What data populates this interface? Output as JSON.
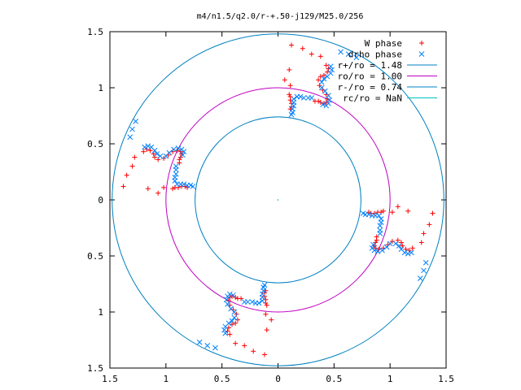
{
  "chart_data": {
    "type": "scatter",
    "title": "m4/n1.5/q2.0/r-+.50-j129/M25.0/256",
    "xlabel": "",
    "ylabel": "",
    "xlim": [
      -1.5,
      1.5
    ],
    "ylim": [
      -1.5,
      1.5
    ],
    "x_ticks": [
      -1.5,
      -1,
      -0.5,
      0,
      0.5,
      1,
      1.5
    ],
    "y_ticks": [
      -1.5,
      -1,
      -0.5,
      0,
      0.5,
      1,
      1.5
    ],
    "x_tick_labels": [
      "1.5",
      "1",
      "0.5",
      "0",
      "0.5",
      "1",
      "1.5"
    ],
    "y_tick_labels": [
      "1.5",
      "1",
      "0.5",
      "0",
      "0.5",
      "1",
      "1.5"
    ],
    "grid": false,
    "legend_position": "top-right",
    "symmetry": 4,
    "points_note": "",
    "series": [
      {
        "name": "W phase",
        "marker": "plus",
        "color": "#ff0000",
        "fundamental_points": [
          [
            0.43,
            1.2
          ],
          [
            0.45,
            1.17
          ],
          [
            0.44,
            1.14
          ],
          [
            0.41,
            1.11
          ],
          [
            0.38,
            1.1
          ],
          [
            0.36,
            1.07
          ],
          [
            0.37,
            1.02
          ],
          [
            0.4,
            0.98
          ],
          [
            0.43,
            0.94
          ],
          [
            0.44,
            0.9
          ],
          [
            0.43,
            0.87
          ],
          [
            0.41,
            0.86
          ],
          [
            0.38,
            0.87
          ],
          [
            0.36,
            0.88
          ],
          [
            0.33,
            0.88
          ],
          [
            0.1,
            0.94
          ],
          [
            0.11,
            0.92
          ],
          [
            0.11,
            0.89
          ],
          [
            0.12,
            0.86
          ],
          [
            0.12,
            0.83
          ],
          [
            0.11,
            0.81
          ],
          [
            0.38,
            1.28
          ],
          [
            0.3,
            1.3
          ],
          [
            0.22,
            1.35
          ],
          [
            0.12,
            1.38
          ],
          [
            0.1,
            1.16
          ],
          [
            0.06,
            1.07
          ],
          [
            0.11,
            1.02
          ]
        ]
      },
      {
        "name": "drho phase",
        "marker": "cross",
        "color": "#0080ff",
        "fundamental_points": [
          [
            0.47,
            1.19
          ],
          [
            0.48,
            1.16
          ],
          [
            0.47,
            1.13
          ],
          [
            0.44,
            1.1
          ],
          [
            0.41,
            1.08
          ],
          [
            0.39,
            1.05
          ],
          [
            0.39,
            1.0
          ],
          [
            0.42,
            0.97
          ],
          [
            0.45,
            0.93
          ],
          [
            0.46,
            0.89
          ],
          [
            0.45,
            0.86
          ],
          [
            0.43,
            0.84
          ],
          [
            0.4,
            0.85
          ],
          [
            0.3,
            0.91
          ],
          [
            0.27,
            0.91
          ],
          [
            0.23,
            0.91
          ],
          [
            0.2,
            0.92
          ],
          [
            0.17,
            0.92
          ],
          [
            0.14,
            0.9
          ],
          [
            0.14,
            0.87
          ],
          [
            0.14,
            0.84
          ],
          [
            0.13,
            0.81
          ],
          [
            0.13,
            0.78
          ],
          [
            0.12,
            0.76
          ],
          [
            0.56,
            1.32
          ],
          [
            0.63,
            1.3
          ],
          [
            0.7,
            1.27
          ]
        ]
      }
    ],
    "circles": [
      {
        "name": "r+/ro = 1.48",
        "radius": 1.48,
        "color": "#0080c0"
      },
      {
        "name": "ro/ro = 1.00",
        "radius": 1.0,
        "color": "#c000c0"
      },
      {
        "name": "r-/ro = 0.74",
        "radius": 0.74,
        "color": "#0080c0"
      },
      {
        "name": "rc/ro = NaN",
        "radius": null,
        "color": "#00c0c0"
      }
    ]
  }
}
